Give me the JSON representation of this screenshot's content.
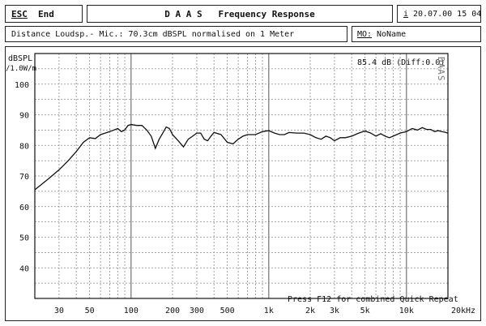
{
  "header": {
    "esc_key": "ESC",
    "esc_label": "End",
    "app_title": "D A A S   Frequency Response",
    "info_key": "i",
    "datetime": "20.07.00 15 04"
  },
  "infobar": {
    "description": "Distance Loudsp.- Mic.: 70.3cm dBSPL normalised on 1 Meter",
    "mo_key": "MO:",
    "mo_value": "NoName"
  },
  "chart_data": {
    "type": "line",
    "ylabel": "dBSPL",
    "ylabel_unit": "/1.0W/m",
    "readout": "85.4 dB (Diff:0.0)",
    "watermark": "DAAS",
    "footer_text": "Press F12 for combined Quick Repeat",
    "x_scale": "log",
    "xlim": [
      20,
      20000
    ],
    "ylim": [
      30,
      110
    ],
    "y_ticks": [
      40,
      50,
      60,
      70,
      80,
      90,
      100
    ],
    "x_tick_labels": [
      {
        "value": 30,
        "label": "30"
      },
      {
        "value": 50,
        "label": "50"
      },
      {
        "value": 100,
        "label": "100"
      },
      {
        "value": 200,
        "label": "200"
      },
      {
        "value": 300,
        "label": "300"
      },
      {
        "value": 500,
        "label": "500"
      },
      {
        "value": 1000,
        "label": "1k"
      },
      {
        "value": 2000,
        "label": "2k"
      },
      {
        "value": 3000,
        "label": "3k"
      },
      {
        "value": 5000,
        "label": "5k"
      },
      {
        "value": 10000,
        "label": "10k"
      },
      {
        "value": 20000,
        "label": "20kHz"
      }
    ],
    "grid": true,
    "series": [
      {
        "points": [
          [
            20,
            65.5
          ],
          [
            25,
            69
          ],
          [
            30,
            72
          ],
          [
            35,
            75
          ],
          [
            40,
            78
          ],
          [
            45,
            81
          ],
          [
            50,
            82.5
          ],
          [
            55,
            82.2
          ],
          [
            60,
            83.5
          ],
          [
            70,
            84.5
          ],
          [
            80,
            85.5
          ],
          [
            85,
            84.5
          ],
          [
            90,
            85
          ],
          [
            95,
            86.5
          ],
          [
            100,
            86.8
          ],
          [
            110,
            86.5
          ],
          [
            120,
            86.5
          ],
          [
            130,
            85
          ],
          [
            140,
            83
          ],
          [
            150,
            79
          ],
          [
            160,
            82
          ],
          [
            170,
            84
          ],
          [
            180,
            86
          ],
          [
            190,
            85.5
          ],
          [
            200,
            83.5
          ],
          [
            220,
            81.5
          ],
          [
            240,
            79.5
          ],
          [
            260,
            82
          ],
          [
            280,
            83
          ],
          [
            300,
            84
          ],
          [
            320,
            84
          ],
          [
            340,
            82
          ],
          [
            360,
            81.5
          ],
          [
            380,
            83
          ],
          [
            400,
            84.2
          ],
          [
            450,
            83.5
          ],
          [
            500,
            81
          ],
          [
            550,
            80.5
          ],
          [
            600,
            82
          ],
          [
            650,
            83
          ],
          [
            700,
            83.5
          ],
          [
            800,
            83.5
          ],
          [
            900,
            84.5
          ],
          [
            1000,
            84.8
          ],
          [
            1100,
            84
          ],
          [
            1200,
            83.5
          ],
          [
            1300,
            83.5
          ],
          [
            1400,
            84.2
          ],
          [
            1600,
            84
          ],
          [
            1800,
            84
          ],
          [
            2000,
            83.5
          ],
          [
            2200,
            82.5
          ],
          [
            2400,
            82
          ],
          [
            2600,
            83
          ],
          [
            2800,
            82.5
          ],
          [
            3000,
            81.5
          ],
          [
            3300,
            82.5
          ],
          [
            3600,
            82.5
          ],
          [
            4000,
            83
          ],
          [
            4500,
            84
          ],
          [
            5000,
            84.7
          ],
          [
            5500,
            84
          ],
          [
            6000,
            83
          ],
          [
            6500,
            83.8
          ],
          [
            7000,
            83
          ],
          [
            7500,
            82.5
          ],
          [
            8000,
            83
          ],
          [
            9000,
            84
          ],
          [
            10000,
            84.5
          ],
          [
            11000,
            85.5
          ],
          [
            12000,
            85
          ],
          [
            13000,
            85.8
          ],
          [
            14000,
            85.2
          ],
          [
            15000,
            85.2
          ],
          [
            16000,
            84.5
          ],
          [
            17000,
            84.8
          ],
          [
            18000,
            84.5
          ],
          [
            19000,
            84.3
          ],
          [
            20000,
            84
          ]
        ]
      }
    ]
  },
  "colors": {
    "ink": "#111111",
    "grid_solid": "#555555",
    "grid_dash": "#8a8a8a",
    "paper": "#ffffff"
  }
}
